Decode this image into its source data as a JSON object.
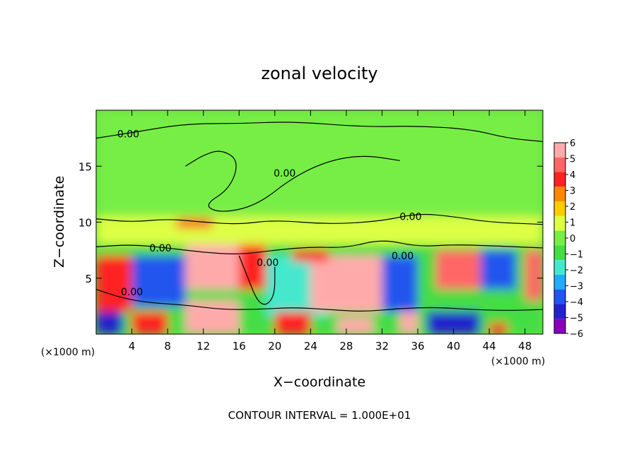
{
  "chart_data": {
    "type": "heatmap",
    "title": "zonal velocity",
    "xlabel": "X−coordinate",
    "ylabel": "Z−coordinate",
    "x_unit_left": "(×1000 m)",
    "x_unit_right": "(×1000 m)",
    "footer": "CONTOUR INTERVAL = 1.000E+01",
    "xlim": [
      0,
      50
    ],
    "ylim": [
      0,
      20
    ],
    "x_ticks": [
      4,
      8,
      12,
      16,
      20,
      24,
      28,
      32,
      36,
      40,
      44,
      48
    ],
    "y_ticks": [
      5,
      10,
      15
    ],
    "contour_label": "0.00",
    "contour_label_points": [
      [
        3.6,
        17.9
      ],
      [
        21.1,
        14.4
      ],
      [
        35.2,
        10.5
      ],
      [
        7.2,
        7.7
      ],
      [
        19.2,
        6.4
      ],
      [
        34.3,
        7.0
      ],
      [
        4.0,
        3.8
      ]
    ],
    "colorbar": {
      "levels": [
        "6",
        "5",
        "4",
        "3",
        "2",
        "1",
        "0",
        "−1",
        "−2",
        "−3",
        "−4",
        "−5",
        "−6"
      ],
      "colors": [
        "#ffaaaa",
        "#ff6666",
        "#ff2222",
        "#ff8800",
        "#ffcc00",
        "#ddff44",
        "#77ee44",
        "#44dd44",
        "#44e8cc",
        "#22aaff",
        "#2255ee",
        "#2222cc",
        "#8800bb"
      ]
    },
    "cells": [
      {
        "x": 0,
        "x2": 50,
        "y": 10.5,
        "y2": 20,
        "v": 0
      },
      {
        "x": 0,
        "x2": 50,
        "y": 8,
        "y2": 10.5,
        "v": 0.5
      },
      {
        "x": 0,
        "x2": 50,
        "y": 0,
        "y2": 8,
        "v": -1
      },
      {
        "x": 0,
        "x2": 4,
        "y": 2,
        "y2": 7,
        "v": 4
      },
      {
        "x": 4,
        "x2": 10,
        "y": 2.5,
        "y2": 7,
        "v": -4
      },
      {
        "x": 10,
        "x2": 16,
        "y": 4,
        "y2": 8,
        "v": 6
      },
      {
        "x": 16,
        "x2": 19,
        "y": 4,
        "y2": 8,
        "v": 4
      },
      {
        "x": 19,
        "x2": 26,
        "y": 1.5,
        "y2": 7,
        "v": -2
      },
      {
        "x": 24,
        "x2": 32,
        "y": 2,
        "y2": 7,
        "v": 6
      },
      {
        "x": 32,
        "x2": 36,
        "y": 2,
        "y2": 7,
        "v": -4
      },
      {
        "x": 38,
        "x2": 43,
        "y": 4,
        "y2": 7.5,
        "v": 5
      },
      {
        "x": 43,
        "x2": 47,
        "y": 4,
        "y2": 7.5,
        "v": -4
      },
      {
        "x": 48,
        "x2": 50,
        "y": 3,
        "y2": 7.5,
        "v": 5
      },
      {
        "x": 10,
        "x2": 16,
        "y": 0,
        "y2": 3,
        "v": 6
      },
      {
        "x": 20,
        "x2": 24,
        "y": 0,
        "y2": 2,
        "v": 4
      },
      {
        "x": 27,
        "x2": 31,
        "y": 0,
        "y2": 1.5,
        "v": 6
      },
      {
        "x": 34,
        "x2": 36,
        "y": 0,
        "y2": 2,
        "v": 6
      },
      {
        "x": 37,
        "x2": 43,
        "y": 0,
        "y2": 2,
        "v": -5
      },
      {
        "x": 0,
        "x2": 3,
        "y": 0,
        "y2": 2,
        "v": -5
      },
      {
        "x": 4,
        "x2": 8,
        "y": 0,
        "y2": 2,
        "v": 4
      },
      {
        "x": 9,
        "x2": 13,
        "y": 9.5,
        "y2": 10.3,
        "v": 4
      },
      {
        "x": 22,
        "x2": 26,
        "y": 6.5,
        "y2": 7.5,
        "v": 4
      },
      {
        "x": 44,
        "x2": 46,
        "y": 0,
        "y2": 1,
        "v": 4
      }
    ]
  }
}
